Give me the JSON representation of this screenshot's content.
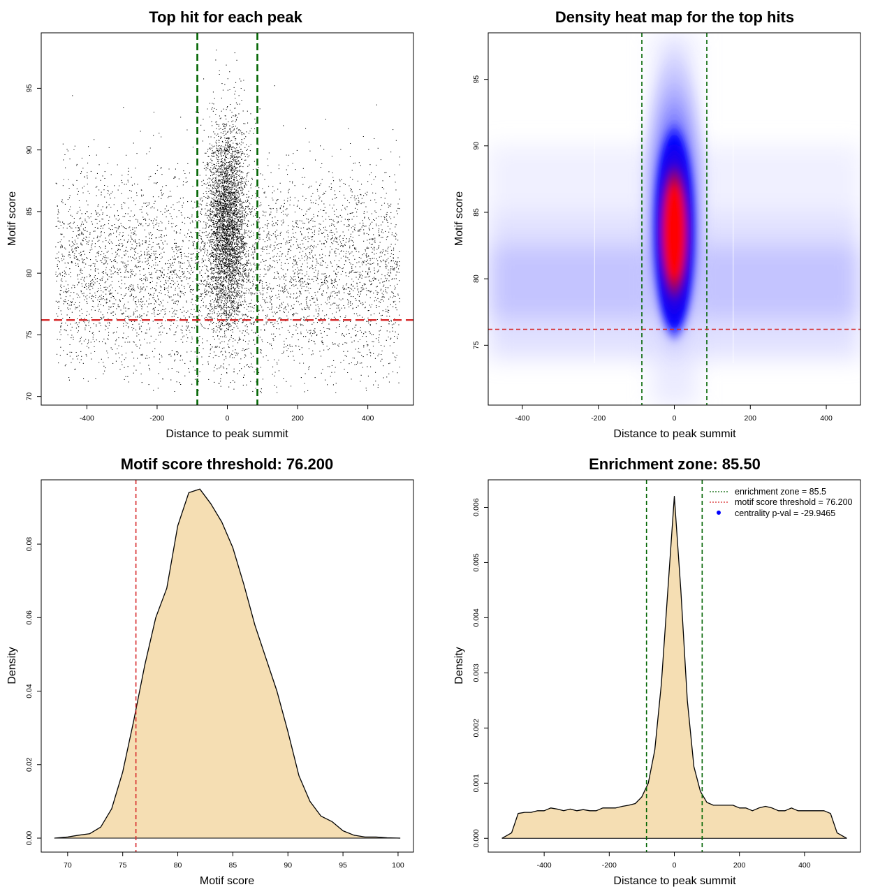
{
  "chart_data": [
    {
      "id": "top-hits",
      "type": "scatter",
      "title": "Top hit for each peak",
      "xlabel": "Distance to peak summit",
      "ylabel": "Motif score",
      "xlim": [
        -530,
        530
      ],
      "ylim": [
        69.3,
        99.5
      ],
      "xticks": [
        -400,
        -200,
        0,
        200,
        400
      ],
      "yticks": [
        70,
        75,
        80,
        85,
        90,
        95
      ],
      "vlines": [
        -85.5,
        85.5
      ],
      "hline": 76.2,
      "colors": {
        "points": "#000000",
        "vlines": "#006400",
        "hline": "#d62728"
      },
      "points_summary": {
        "count_approx": 9000,
        "background": {
          "x_range": [
            -490,
            490
          ],
          "y_center": 80,
          "y_sd": 4.2
        },
        "central": {
          "x_center": 0,
          "x_sd": 28,
          "y_center": 84,
          "y_sd": 4.2
        }
      }
    },
    {
      "id": "density-heatmap",
      "type": "heatmap",
      "title": "Density heat map for the top hits",
      "xlabel": "Distance to peak summit",
      "ylabel": "Motif score",
      "xlim": [
        -490,
        490
      ],
      "ylim": [
        70.5,
        98.5
      ],
      "xticks": [
        -400,
        -200,
        0,
        200,
        400
      ],
      "yticks": [
        75,
        80,
        85,
        90,
        95
      ],
      "vlines": [
        -85.5,
        85.5
      ],
      "hline": 76.2,
      "peak": {
        "x": 0,
        "y": 83.5
      },
      "colormap": [
        "#ffffff",
        "#0000ff",
        "#ff0000"
      ],
      "colors": {
        "vlines": "#006400",
        "hline": "#d62728"
      }
    },
    {
      "id": "motif-score-density",
      "type": "area",
      "title": "Motif score threshold: 76.200",
      "xlabel": "Motif score",
      "ylabel": "Density",
      "xlim": [
        67.6,
        101.4
      ],
      "ylim": [
        -0.0038,
        0.0975
      ],
      "xticks": [
        70,
        75,
        80,
        85,
        90,
        95,
        100
      ],
      "yticks": [
        0.0,
        0.02,
        0.04,
        0.06,
        0.08
      ],
      "ytick_labels": [
        "0.00",
        "0.02",
        "0.04",
        "0.06",
        "0.08"
      ],
      "vline": 76.2,
      "x": [
        68.8,
        70,
        71,
        72,
        73,
        74,
        75,
        76,
        77,
        78,
        79,
        80,
        81,
        82,
        83,
        84,
        85,
        86,
        87,
        88,
        89,
        90,
        91,
        92,
        93,
        94,
        95,
        96,
        97,
        98,
        99,
        100.2
      ],
      "y": [
        0.0,
        0.0003,
        0.0008,
        0.0012,
        0.003,
        0.008,
        0.018,
        0.032,
        0.047,
        0.06,
        0.068,
        0.085,
        0.094,
        0.095,
        0.091,
        0.086,
        0.079,
        0.069,
        0.058,
        0.049,
        0.04,
        0.029,
        0.017,
        0.01,
        0.006,
        0.0045,
        0.002,
        0.0008,
        0.0003,
        0.0003,
        0.0001,
        0.0
      ],
      "colors": {
        "fill": "#f5deb3",
        "line": "#000000",
        "vline": "#d62728"
      }
    },
    {
      "id": "distance-density",
      "type": "area",
      "title": "Enrichment zone: 85.50",
      "xlabel": "Distance to peak summit",
      "ylabel": "Density",
      "xlim": [
        -572,
        572
      ],
      "ylim": [
        -0.00025,
        0.0065
      ],
      "xticks": [
        -400,
        -200,
        0,
        200,
        400
      ],
      "yticks": [
        0.0,
        0.001,
        0.002,
        0.003,
        0.004,
        0.005,
        0.006
      ],
      "ytick_labels": [
        "0.000",
        "0.001",
        "0.002",
        "0.003",
        "0.004",
        "0.005",
        "0.006"
      ],
      "vlines": [
        -85.5,
        85.5
      ],
      "x": [
        -530,
        -500,
        -480,
        -460,
        -440,
        -420,
        -400,
        -380,
        -360,
        -340,
        -320,
        -300,
        -280,
        -260,
        -240,
        -220,
        -200,
        -180,
        -160,
        -140,
        -120,
        -100,
        -80,
        -60,
        -40,
        -20,
        0,
        20,
        40,
        60,
        80,
        100,
        120,
        140,
        160,
        180,
        200,
        220,
        240,
        260,
        280,
        300,
        320,
        340,
        360,
        380,
        400,
        420,
        440,
        460,
        480,
        500,
        530
      ],
      "y": [
        0.0,
        0.0001,
        0.00045,
        0.00047,
        0.00047,
        0.0005,
        0.0005,
        0.00055,
        0.00053,
        0.0005,
        0.00053,
        0.0005,
        0.00052,
        0.0005,
        0.0005,
        0.00055,
        0.00055,
        0.00055,
        0.00058,
        0.0006,
        0.00063,
        0.00075,
        0.001,
        0.0016,
        0.0028,
        0.0045,
        0.0062,
        0.0045,
        0.0025,
        0.0013,
        0.00085,
        0.00065,
        0.0006,
        0.0006,
        0.0006,
        0.0006,
        0.00055,
        0.00055,
        0.0005,
        0.00055,
        0.00058,
        0.00055,
        0.0005,
        0.0005,
        0.00055,
        0.0005,
        0.0005,
        0.0005,
        0.0005,
        0.0005,
        0.00045,
        0.0001,
        0.0
      ],
      "legend": [
        {
          "label": "enrichment zone = 85.5",
          "style": "dotted",
          "color": "#006400"
        },
        {
          "label": "motif score threshold = 76.200",
          "style": "dotted",
          "color": "#d62728"
        },
        {
          "label": "centrality p-val = -29.9465",
          "style": "dot",
          "color": "#0000ff"
        }
      ],
      "legend_position": "top-right",
      "colors": {
        "fill": "#f5deb3",
        "line": "#000000",
        "vlines": "#006400"
      }
    }
  ]
}
